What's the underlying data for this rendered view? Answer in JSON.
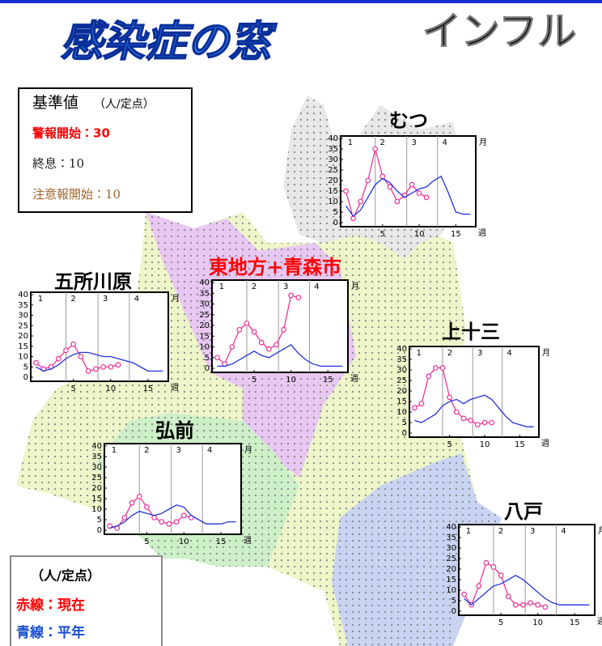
{
  "header": {
    "title": "感染症の窓",
    "subtitle": "インフル"
  },
  "standard_box": {
    "heading": "基準値",
    "unit": "（人/定点）",
    "lines": [
      "警報開始：30",
      "終息：10",
      "注意報開始：10"
    ]
  },
  "legend_box": {
    "unit": "（人/定点）",
    "lines": [
      "赤線：現在",
      "青線：平年"
    ]
  },
  "chart_data": [
    {
      "type": "line",
      "title": "むつ",
      "x": [
        0,
        1,
        2,
        3,
        4,
        5,
        6,
        7,
        8,
        9,
        10,
        11,
        12,
        13,
        14,
        15,
        16,
        17
      ],
      "xlim": [
        -0.5,
        17.5
      ],
      "xticks": [
        5,
        10,
        15
      ],
      "ylim": [
        0,
        40
      ],
      "yticks": [
        0,
        5,
        10,
        15,
        20,
        25,
        30,
        35,
        40
      ],
      "months": [
        "1",
        "2",
        "3",
        "4"
      ],
      "month_unit": "月",
      "week_unit": "週",
      "series": [
        {
          "color": "#ee3399",
          "values": [
            15,
            2,
            10,
            20,
            35,
            22,
            17,
            10,
            13,
            18,
            14,
            12,
            null,
            null,
            null,
            null,
            null,
            null
          ]
        },
        {
          "color": "#2233dd",
          "values": [
            8,
            3,
            6,
            12,
            18,
            21,
            19,
            15,
            12,
            14,
            16,
            17,
            20,
            22,
            14,
            5,
            4,
            4
          ]
        }
      ]
    },
    {
      "type": "line",
      "title": "五所川原",
      "x": [
        0,
        1,
        2,
        3,
        4,
        5,
        6,
        7,
        8,
        9,
        10,
        11,
        12,
        13,
        14,
        15,
        16,
        17
      ],
      "xlim": [
        -0.5,
        17.5
      ],
      "xticks": [
        5,
        10,
        15
      ],
      "ylim": [
        0,
        40
      ],
      "yticks": [
        0,
        5,
        10,
        15,
        20,
        25,
        30,
        35,
        40
      ],
      "months": [
        "1",
        "2",
        "3",
        "4"
      ],
      "month_unit": "月",
      "week_unit": "週",
      "series": [
        {
          "color": "#ee3399",
          "values": [
            7,
            4,
            5,
            9,
            13,
            16,
            10,
            3,
            4,
            5,
            5,
            6,
            null,
            null,
            null,
            null,
            null,
            null
          ]
        },
        {
          "color": "#2233dd",
          "values": [
            5,
            3,
            4,
            6,
            9,
            11,
            12,
            12,
            11,
            10,
            10,
            9,
            8,
            7,
            5,
            3,
            3,
            3
          ]
        }
      ]
    },
    {
      "type": "line",
      "title": "東地方+青森市",
      "title_color": "#ff0000",
      "x": [
        0,
        1,
        2,
        3,
        4,
        5,
        6,
        7,
        8,
        9,
        10,
        11,
        12,
        13,
        14,
        15,
        16,
        17
      ],
      "xlim": [
        -0.5,
        17.5
      ],
      "xticks": [
        5,
        10,
        15
      ],
      "ylim": [
        0,
        40
      ],
      "yticks": [
        0,
        5,
        10,
        15,
        20,
        25,
        30,
        35,
        40
      ],
      "months": [
        "1",
        "2",
        "3",
        "4"
      ],
      "month_unit": "月",
      "week_unit": "週",
      "series": [
        {
          "color": "#ee3399",
          "values": [
            5,
            2,
            10,
            18,
            21,
            17,
            12,
            9,
            11,
            18,
            34,
            33,
            null,
            null,
            null,
            null,
            null,
            null
          ]
        },
        {
          "color": "#2233dd",
          "values": [
            1,
            1,
            2,
            4,
            6,
            8,
            6,
            5,
            7,
            9,
            11,
            7,
            4,
            2,
            1,
            1,
            1,
            1
          ]
        }
      ]
    },
    {
      "type": "line",
      "title": "上十三",
      "x": [
        0,
        1,
        2,
        3,
        4,
        5,
        6,
        7,
        8,
        9,
        10,
        11,
        12,
        13,
        14,
        15,
        16,
        17
      ],
      "xlim": [
        -0.5,
        17.5
      ],
      "xticks": [
        5,
        10,
        15
      ],
      "ylim": [
        0,
        40
      ],
      "yticks": [
        0,
        5,
        10,
        15,
        20,
        25,
        30,
        35,
        40
      ],
      "months": [
        "1",
        "2",
        "3",
        "4"
      ],
      "month_unit": "月",
      "week_unit": "週",
      "series": [
        {
          "color": "#ee3399",
          "values": [
            12,
            14,
            27,
            31,
            31,
            17,
            10,
            7,
            6,
            4,
            5,
            5,
            null,
            null,
            null,
            null,
            null,
            null
          ]
        },
        {
          "color": "#2233dd",
          "values": [
            6,
            5,
            7,
            9,
            13,
            15,
            16,
            14,
            16,
            17,
            18,
            16,
            12,
            8,
            5,
            4,
            3,
            3
          ]
        }
      ]
    },
    {
      "type": "line",
      "title": "弘前",
      "x": [
        0,
        1,
        2,
        3,
        4,
        5,
        6,
        7,
        8,
        9,
        10,
        11,
        12,
        13,
        14,
        15,
        16,
        17
      ],
      "xlim": [
        -0.5,
        17.5
      ],
      "xticks": [
        5,
        10,
        15
      ],
      "ylim": [
        0,
        40
      ],
      "yticks": [
        0,
        5,
        10,
        15,
        20,
        25,
        30,
        35,
        40
      ],
      "months": [
        "1",
        "2",
        "3",
        "4"
      ],
      "month_unit": "月",
      "week_unit": "週",
      "series": [
        {
          "color": "#ee3399",
          "values": [
            2,
            1,
            6,
            13,
            16,
            11,
            6,
            4,
            3,
            4,
            7,
            6,
            null,
            null,
            null,
            null,
            null,
            null
          ]
        },
        {
          "color": "#2233dd",
          "values": [
            1,
            2,
            4,
            7,
            9,
            8,
            7,
            8,
            10,
            12,
            11,
            7,
            5,
            3,
            3,
            3,
            4,
            4
          ]
        }
      ]
    },
    {
      "type": "line",
      "title": "八戸",
      "x": [
        0,
        1,
        2,
        3,
        4,
        5,
        6,
        7,
        8,
        9,
        10,
        11,
        12,
        13,
        14,
        15,
        16,
        17
      ],
      "xlim": [
        -0.5,
        17.5
      ],
      "xticks": [
        5,
        10,
        15
      ],
      "ylim": [
        0,
        40
      ],
      "yticks": [
        0,
        5,
        10,
        15,
        20,
        25,
        30,
        35,
        40
      ],
      "months": [
        "1",
        "2",
        "3",
        "4"
      ],
      "month_unit": "月",
      "week_unit": "週",
      "series": [
        {
          "color": "#ee3399",
          "values": [
            8,
            3,
            12,
            23,
            21,
            17,
            7,
            3,
            3,
            4,
            3,
            2,
            null,
            null,
            null,
            null,
            null,
            null
          ]
        },
        {
          "color": "#2233dd",
          "values": [
            6,
            3,
            6,
            9,
            12,
            13,
            15,
            17,
            15,
            12,
            9,
            6,
            4,
            3,
            3,
            3,
            3,
            3
          ]
        }
      ]
    }
  ]
}
